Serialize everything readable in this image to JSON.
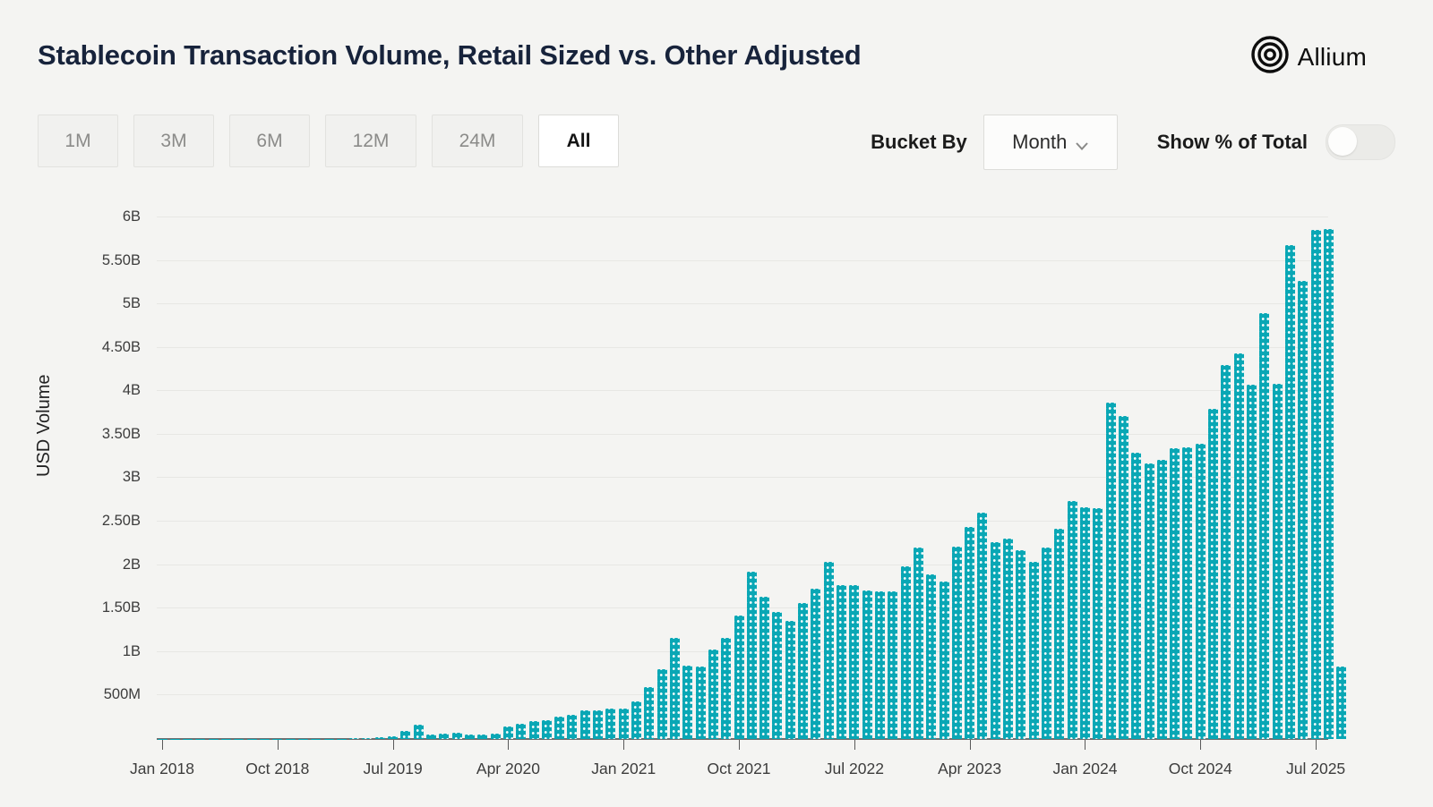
{
  "header": {
    "title": "Stablecoin Transaction Volume, Retail Sized vs. Other Adjusted",
    "logo_text": "Allium"
  },
  "controls": {
    "range_buttons": [
      {
        "label": "1M",
        "active": false
      },
      {
        "label": "3M",
        "active": false
      },
      {
        "label": "6M",
        "active": false
      },
      {
        "label": "12M",
        "active": false
      },
      {
        "label": "24M",
        "active": false
      },
      {
        "label": "All",
        "active": true
      }
    ],
    "bucket_by_label": "Bucket By",
    "bucket_selected": "Month",
    "show_pct_label": "Show % of Total",
    "show_pct_on": false
  },
  "chart_data": {
    "type": "bar",
    "title": "Stablecoin Transaction Volume, Retail Sized vs. Other Adjusted",
    "xlabel": "",
    "ylabel": "USD Volume",
    "ylim_m": [
      0,
      6030
    ],
    "grid": true,
    "legend": "none",
    "bar_color": "#09a7b5",
    "y_ticks": [
      {
        "label": "500M",
        "value_m": 500
      },
      {
        "label": "1B",
        "value_m": 1000
      },
      {
        "label": "1.50B",
        "value_m": 1500
      },
      {
        "label": "2B",
        "value_m": 2000
      },
      {
        "label": "2.50B",
        "value_m": 2500
      },
      {
        "label": "3B",
        "value_m": 3000
      },
      {
        "label": "3.50B",
        "value_m": 3500
      },
      {
        "label": "4B",
        "value_m": 4000
      },
      {
        "label": "4.50B",
        "value_m": 4500
      },
      {
        "label": "5B",
        "value_m": 5000
      },
      {
        "label": "5.50B",
        "value_m": 5500
      },
      {
        "label": "6B",
        "value_m": 6000
      }
    ],
    "x_tick_every_months": 9,
    "x_tick_labels": [
      "Jan 2018",
      "Oct 2018",
      "Jul 2019",
      "Apr 2020",
      "Jan 2021",
      "Oct 2021",
      "Jul 2022",
      "Apr 2023",
      "Jan 2024",
      "Oct 2024",
      "Jul 2025"
    ],
    "months": [
      "Jan 2018",
      "Feb 2018",
      "Mar 2018",
      "Apr 2018",
      "May 2018",
      "Jun 2018",
      "Jul 2018",
      "Aug 2018",
      "Sep 2018",
      "Oct 2018",
      "Nov 2018",
      "Dec 2018",
      "Jan 2019",
      "Feb 2019",
      "Mar 2019",
      "Apr 2019",
      "May 2019",
      "Jun 2019",
      "Jul 2019",
      "Aug 2019",
      "Sep 2019",
      "Oct 2019",
      "Nov 2019",
      "Dec 2019",
      "Jan 2020",
      "Feb 2020",
      "Mar 2020",
      "Apr 2020",
      "May 2020",
      "Jun 2020",
      "Jul 2020",
      "Aug 2020",
      "Sep 2020",
      "Oct 2020",
      "Nov 2020",
      "Dec 2020",
      "Jan 2021",
      "Feb 2021",
      "Mar 2021",
      "Apr 2021",
      "May 2021",
      "Jun 2021",
      "Jul 2021",
      "Aug 2021",
      "Sep 2021",
      "Oct 2021",
      "Nov 2021",
      "Dec 2021",
      "Jan 2022",
      "Feb 2022",
      "Mar 2022",
      "Apr 2022",
      "May 2022",
      "Jun 2022",
      "Jul 2022",
      "Aug 2022",
      "Sep 2022",
      "Oct 2022",
      "Nov 2022",
      "Dec 2022",
      "Jan 2023",
      "Feb 2023",
      "Mar 2023",
      "Apr 2023",
      "May 2023",
      "Jun 2023",
      "Jul 2023",
      "Aug 2023",
      "Sep 2023",
      "Oct 2023",
      "Nov 2023",
      "Dec 2023",
      "Jan 2024",
      "Feb 2024",
      "Mar 2024",
      "Apr 2024",
      "May 2024",
      "Jun 2024",
      "Jul 2024",
      "Aug 2024",
      "Sep 2024",
      "Oct 2024",
      "Nov 2024",
      "Dec 2024",
      "Jan 2025",
      "Feb 2025",
      "Mar 2025",
      "Apr 2025",
      "May 2025",
      "Jun 2025",
      "Jul 2025",
      "Aug 2025",
      "Sep 2025"
    ],
    "values_m": [
      1,
      1,
      1,
      1,
      1,
      2,
      2,
      2,
      2,
      3,
      3,
      3,
      4,
      4,
      5,
      6,
      15,
      25,
      30,
      88,
      160,
      55,
      60,
      70,
      47,
      54,
      61,
      145,
      172,
      203,
      213,
      257,
      274,
      331,
      331,
      348,
      350,
      435,
      600,
      800,
      1160,
      840,
      835,
      1030,
      1165,
      1420,
      1920,
      1640,
      1460,
      1360,
      1560,
      1725,
      2040,
      1775,
      1770,
      1710,
      1695,
      1695,
      1985,
      2200,
      1890,
      1810,
      2215,
      2435,
      2605,
      2260,
      2310,
      2170,
      2035,
      2205,
      2420,
      2740,
      2665,
      2660,
      3870,
      3720,
      3290,
      3165,
      3210,
      3340,
      3350,
      3400,
      3800,
      4300,
      4440,
      4070,
      4900,
      4090,
      5680,
      5270,
      5860,
      5870,
      830
    ]
  }
}
